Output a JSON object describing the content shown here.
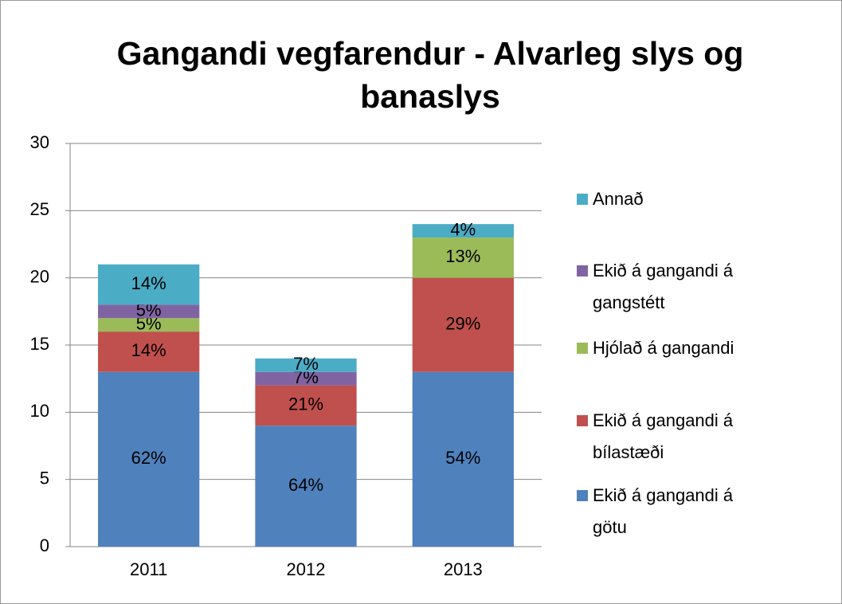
{
  "chart_data": {
    "type": "stacked_bar",
    "title": "Gangandi vegfarendur - Alvarleg slys og banaslys",
    "categories": [
      "2011",
      "2012",
      "2013"
    ],
    "series": [
      {
        "name": "Ekið á gangandi á götu",
        "color": "#4f81bd",
        "values": [
          13,
          9,
          13
        ],
        "data_labels": [
          "62%",
          "64%",
          "54%"
        ]
      },
      {
        "name": "Ekið á gangandi á bílastæði",
        "color": "#c0504d",
        "values": [
          3,
          3,
          7
        ],
        "data_labels": [
          "14%",
          "21%",
          "29%"
        ]
      },
      {
        "name": "Hjólað á gangandi",
        "color": "#9bbb59",
        "values": [
          1,
          0,
          3
        ],
        "data_labels": [
          "5%",
          null,
          "13%"
        ]
      },
      {
        "name": "Ekið á gangandi á gangstétt",
        "color": "#8064a2",
        "values": [
          1,
          1,
          0
        ],
        "data_labels": [
          "5%",
          "7%",
          null
        ]
      },
      {
        "name": "Annað",
        "color": "#4bacc6",
        "values": [
          3,
          1,
          1
        ],
        "data_labels": [
          "14%",
          "7%",
          "4%"
        ]
      }
    ],
    "ylim": [
      0,
      30
    ],
    "yticks": [
      0,
      5,
      10,
      15,
      20,
      25,
      30
    ],
    "grid": true,
    "legend": "right"
  }
}
